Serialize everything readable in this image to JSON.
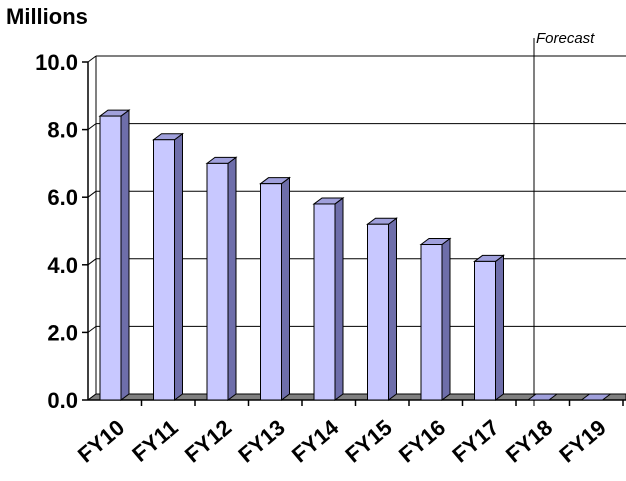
{
  "chart_data": {
    "type": "bar",
    "unit_label": "Millions",
    "annotation": "Forecast",
    "categories": [
      "FY10",
      "FY11",
      "FY12",
      "FY13",
      "FY14",
      "FY15",
      "FY16",
      "FY17",
      "FY18",
      "FY19"
    ],
    "values": [
      8.4,
      7.7,
      7.0,
      6.4,
      5.8,
      5.2,
      4.6,
      4.1,
      0,
      0
    ],
    "ylim": [
      0,
      10
    ],
    "yticks": [
      "0.0",
      "2.0",
      "4.0",
      "6.0",
      "8.0",
      "10.0"
    ],
    "xlabel": "",
    "ylabel": "",
    "grid": true,
    "bar_face_color": "#C8C8FF",
    "bar_side_color": "#6E6EAA",
    "bar_top_color": "#A0A0DC",
    "floor_color": "#808080"
  }
}
